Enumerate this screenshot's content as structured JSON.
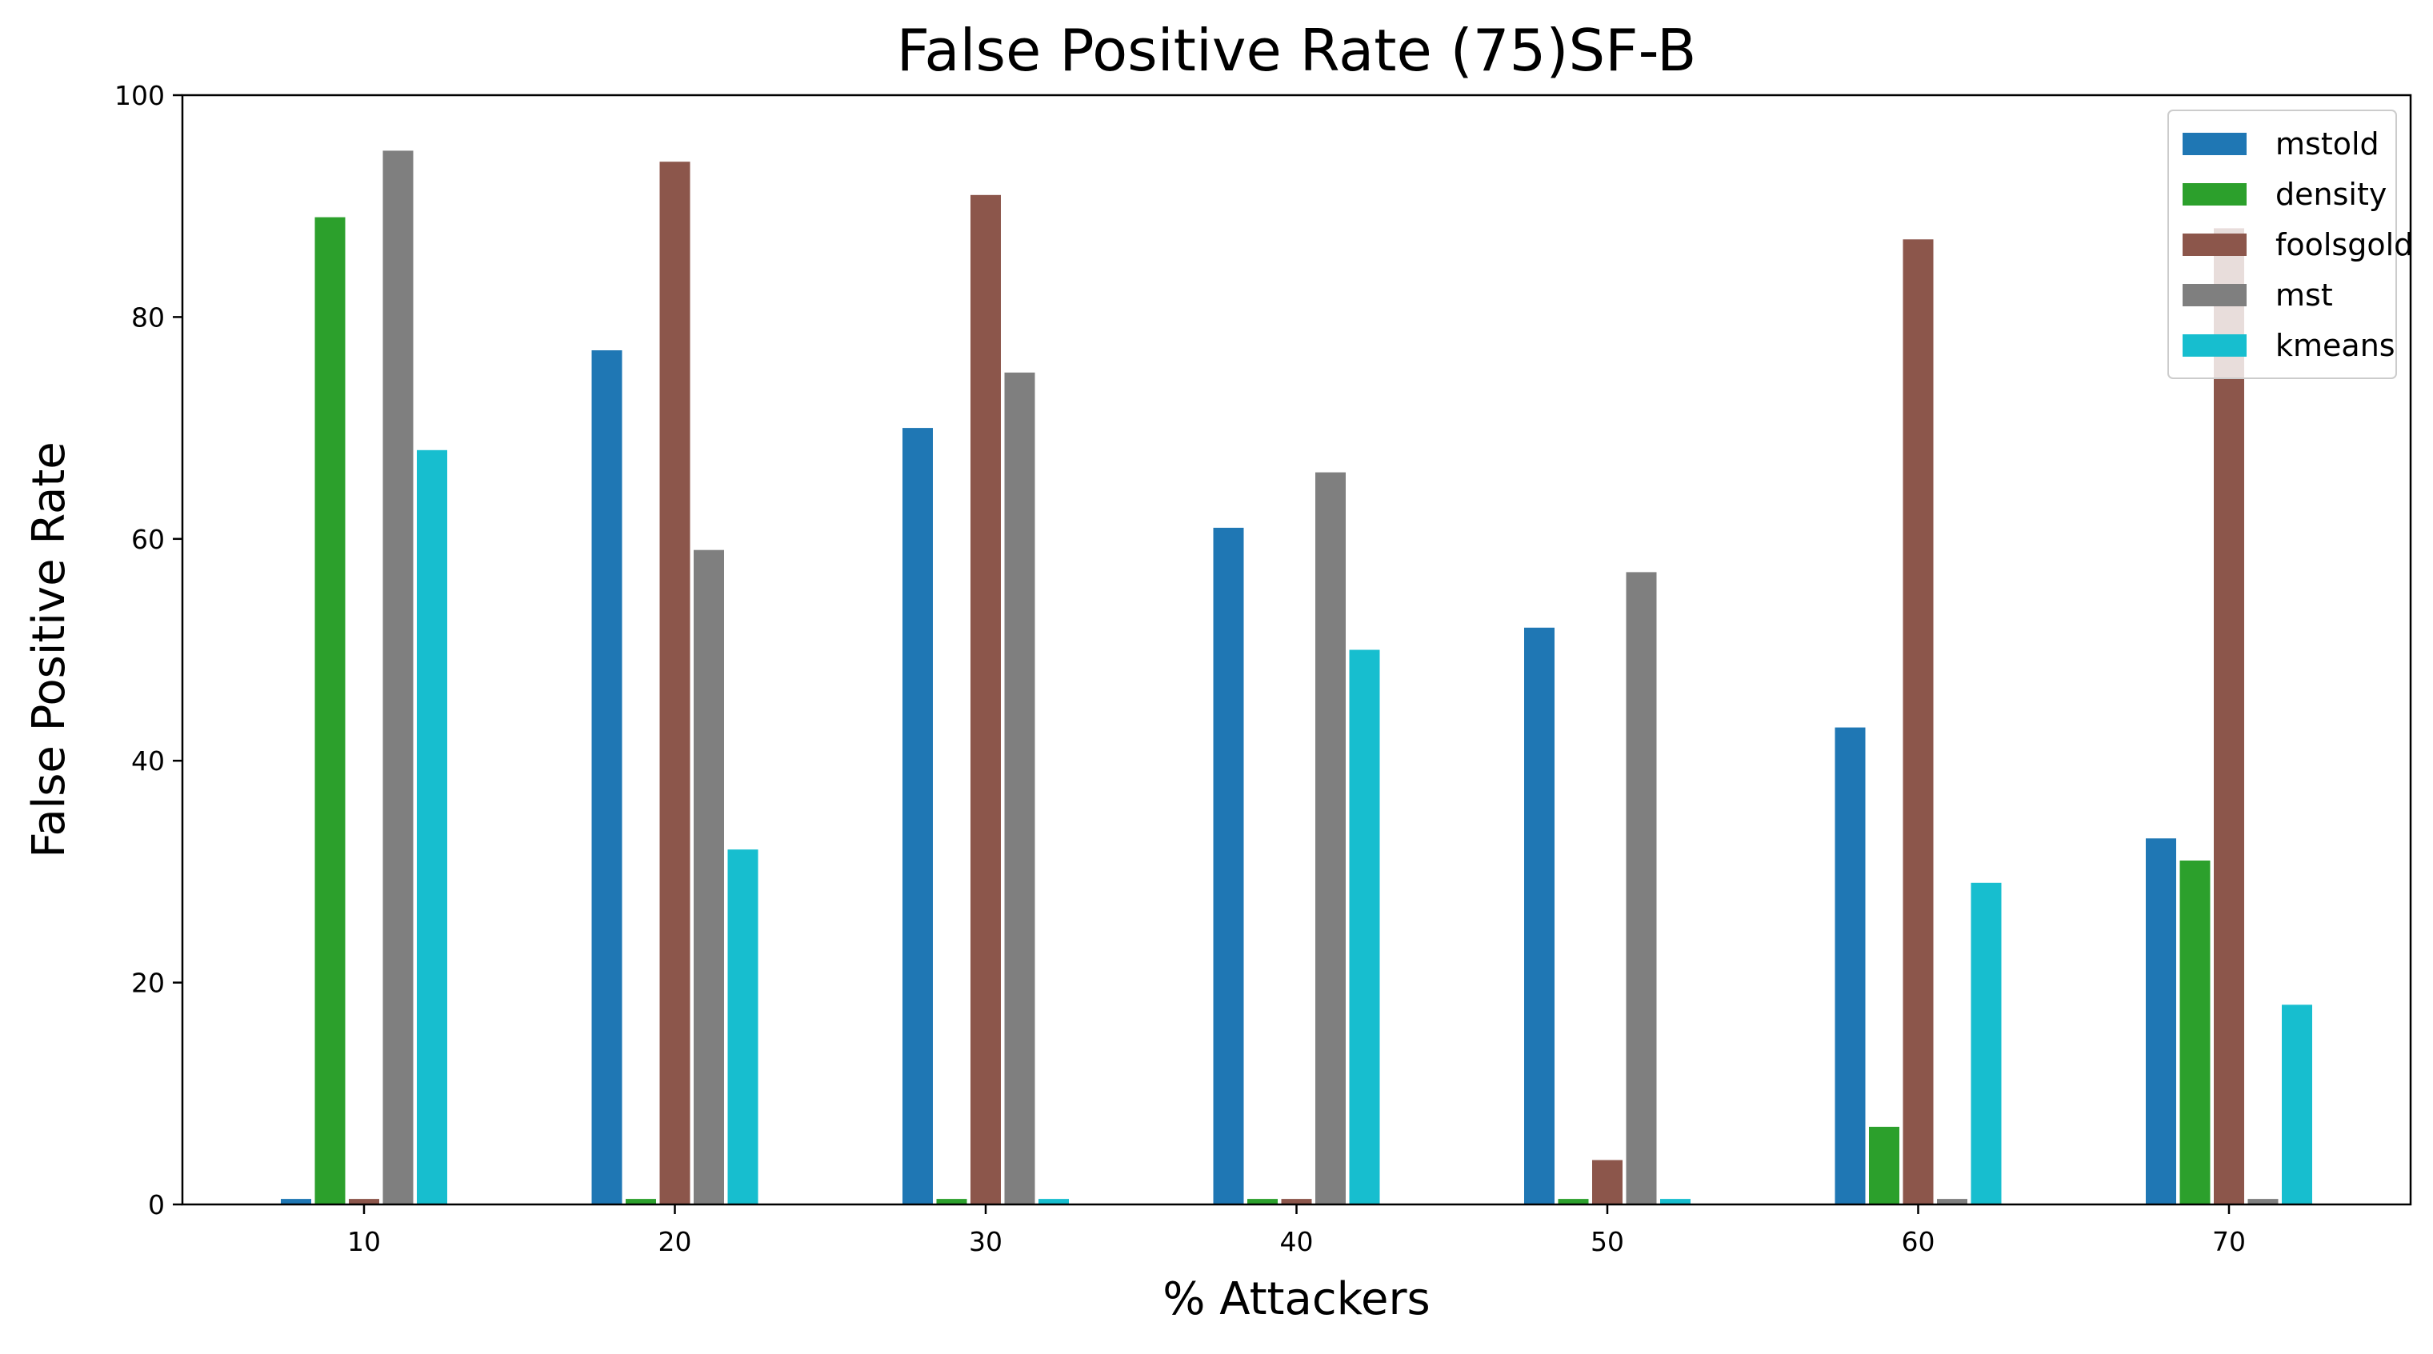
{
  "chart_data": {
    "type": "bar",
    "title": "False Positive Rate (75)SF-B",
    "xlabel": "% Attackers",
    "ylabel": "False Positive Rate",
    "categories": [
      "10",
      "20",
      "30",
      "40",
      "50",
      "60",
      "70"
    ],
    "ylim": [
      0,
      100
    ],
    "yticks": [
      0,
      20,
      40,
      60,
      80,
      100
    ],
    "grid": false,
    "legend_position": "top-right",
    "series": [
      {
        "name": "mstold",
        "color": "#1f77b4",
        "values": [
          0.5,
          77,
          70,
          61,
          52,
          43,
          33
        ]
      },
      {
        "name": "density",
        "color": "#2ca02c",
        "values": [
          89,
          0.5,
          0.5,
          0.5,
          0.5,
          7,
          31
        ]
      },
      {
        "name": "foolsgold",
        "color": "#8c564b",
        "values": [
          0.5,
          94,
          91,
          0.5,
          4,
          87,
          88
        ]
      },
      {
        "name": "mst",
        "color": "#7f7f7f",
        "values": [
          95,
          59,
          75,
          66,
          57,
          0.5,
          0.5
        ]
      },
      {
        "name": "kmeans",
        "color": "#17becf",
        "values": [
          68,
          32,
          0.5,
          50,
          0.5,
          29,
          18
        ]
      }
    ]
  }
}
